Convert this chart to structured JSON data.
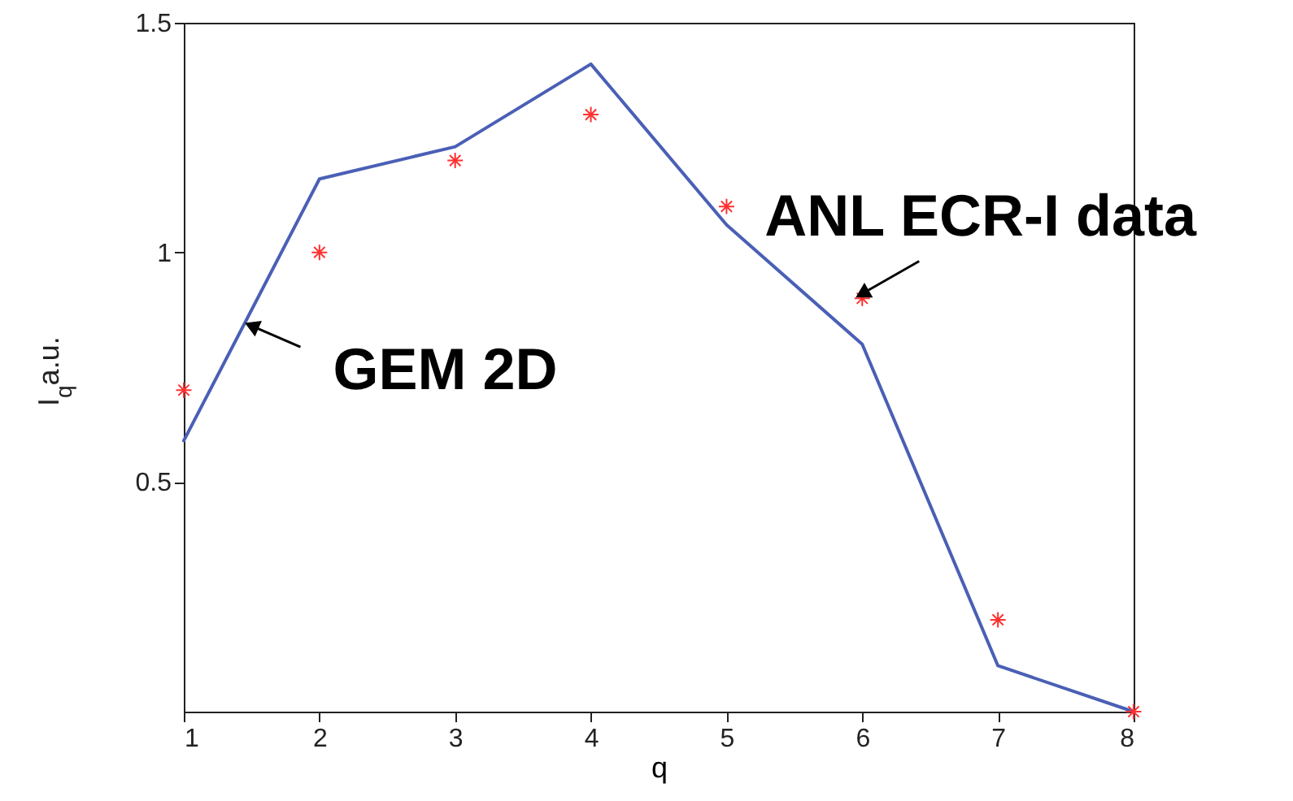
{
  "chart_data": {
    "type": "line",
    "xlabel": "q",
    "ylabel": "I$_{q}$a.u.",
    "x": [
      1,
      2,
      3,
      4,
      5,
      6,
      7,
      8
    ],
    "series": [
      {
        "color": "#4a5fb5",
        "values": [
          0.59,
          1.16,
          1.23,
          1.41,
          1.06,
          0.8,
          0.1,
          0.0
        ],
        "line_style": "solid"
      },
      {
        "type": "scatter",
        "color": "#ff3030",
        "values": [
          0.7,
          1.0,
          1.2,
          1.3,
          1.1,
          0.9,
          0.2,
          0.0
        ],
        "marker": "cross"
      }
    ],
    "xlim": [
      1,
      8
    ],
    "xticks": [
      1,
      2,
      3,
      4,
      5,
      6,
      7,
      8
    ],
    "ylim": [
      0,
      1.5
    ],
    "yticks": [
      0.5,
      1,
      1.5
    ],
    "grid": false,
    "annotations": [
      {
        "text": "GEM 2D",
        "x": 1.5,
        "y": 0.84
      },
      {
        "text": "ANL ECR-I data",
        "x": 6,
        "y": 0.91
      }
    ]
  }
}
